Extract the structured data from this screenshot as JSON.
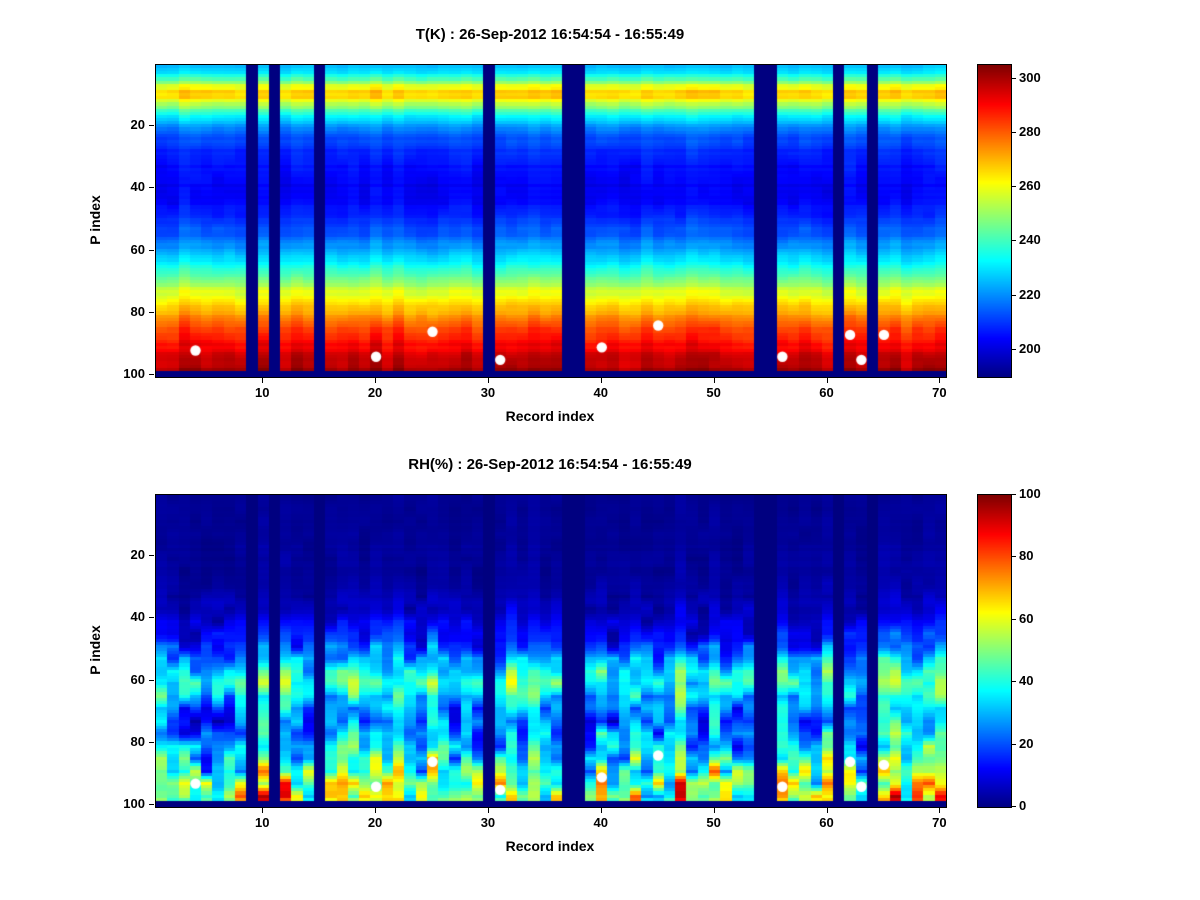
{
  "figure": {
    "background": "#ffffff",
    "missing_data_color_note": "dark navy = jet colormap minimum",
    "dot_color": "#ffffff"
  },
  "panels": [
    {
      "title": "T(K) : 26-Sep-2012 16:54:54 - 16:55:49",
      "xlabel": "Record index",
      "ylabel": "P index",
      "xticks": [
        10,
        20,
        30,
        40,
        50,
        60,
        70
      ],
      "yticks": [
        20,
        40,
        60,
        80,
        100
      ],
      "colorbar_ticks": [
        200,
        220,
        240,
        260,
        280,
        300
      ]
    },
    {
      "title": "RH(%) : 26-Sep-2012 16:54:54 - 16:55:49",
      "xlabel": "Record index",
      "ylabel": "P index",
      "xticks": [
        10,
        20,
        30,
        40,
        50,
        60,
        70
      ],
      "yticks": [
        20,
        40,
        60,
        80,
        100
      ],
      "colorbar_ticks": [
        0,
        20,
        40,
        60,
        80,
        100
      ]
    }
  ],
  "chart_data": [
    {
      "type": "heatmap",
      "title": "T(K) : 26-Sep-2012 16:54:54 - 16:55:49",
      "xlabel": "Record index",
      "ylabel": "P index",
      "colormap": "jet",
      "cols": 70,
      "rows": 100,
      "x_range": [
        1,
        70
      ],
      "y_range": [
        1,
        100
      ],
      "y_direction": "reverse",
      "value_range": [
        190,
        305
      ],
      "colorbar_ticks": [
        200,
        220,
        240,
        260,
        280,
        300
      ],
      "profile_P_value": [
        [
          1,
          225
        ],
        [
          3,
          230
        ],
        [
          5,
          240
        ],
        [
          7,
          258
        ],
        [
          9,
          268
        ],
        [
          11,
          266
        ],
        [
          13,
          252
        ],
        [
          16,
          236
        ],
        [
          20,
          222
        ],
        [
          25,
          212
        ],
        [
          32,
          206
        ],
        [
          40,
          203
        ],
        [
          48,
          207
        ],
        [
          55,
          215
        ],
        [
          60,
          224
        ],
        [
          65,
          236
        ],
        [
          70,
          250
        ],
        [
          75,
          262
        ],
        [
          80,
          272
        ],
        [
          85,
          283
        ],
        [
          90,
          291
        ],
        [
          95,
          297
        ],
        [
          98,
          300
        ]
      ],
      "noise_amp_P": [
        [
          1,
          1.2
        ],
        [
          100,
          2.2
        ]
      ],
      "col_amp_P": [
        [
          1,
          1.5
        ],
        [
          8,
          3
        ],
        [
          20,
          2
        ],
        [
          70,
          2.5
        ],
        [
          100,
          3.5
        ]
      ],
      "row_amp_P": [
        [
          1,
          1
        ],
        [
          10,
          2.5
        ],
        [
          30,
          1.2
        ],
        [
          70,
          1.8
        ],
        [
          100,
          2
        ]
      ],
      "missing_records": [
        9,
        11,
        15,
        30,
        37,
        38,
        54,
        55,
        61,
        64
      ],
      "missing_bottom_rows": 2,
      "dots_record_P": [
        [
          4,
          92
        ],
        [
          20,
          94
        ],
        [
          25,
          86
        ],
        [
          31,
          95
        ],
        [
          40,
          91
        ],
        [
          45,
          84
        ],
        [
          56,
          94
        ],
        [
          62,
          87
        ],
        [
          63,
          95
        ],
        [
          65,
          87
        ]
      ],
      "seed": 7
    },
    {
      "type": "heatmap",
      "title": "RH(%) : 26-Sep-2012 16:54:54 - 16:55:49",
      "xlabel": "Record index",
      "ylabel": "P index",
      "colormap": "jet",
      "cols": 70,
      "rows": 100,
      "x_range": [
        1,
        70
      ],
      "y_range": [
        1,
        100
      ],
      "y_direction": "reverse",
      "value_range": [
        0,
        100
      ],
      "colorbar_ticks": [
        0,
        20,
        40,
        60,
        80,
        100
      ],
      "profile_P_value": [
        [
          1,
          2
        ],
        [
          25,
          3
        ],
        [
          33,
          5
        ],
        [
          38,
          8
        ],
        [
          42,
          12
        ],
        [
          46,
          16
        ],
        [
          50,
          24
        ],
        [
          54,
          32
        ],
        [
          57,
          40
        ],
        [
          60,
          44
        ],
        [
          63,
          42
        ],
        [
          66,
          36
        ],
        [
          69,
          30
        ],
        [
          72,
          26
        ],
        [
          75,
          28
        ],
        [
          78,
          32
        ],
        [
          81,
          36
        ],
        [
          84,
          42
        ],
        [
          87,
          47
        ],
        [
          90,
          52
        ],
        [
          93,
          57
        ],
        [
          96,
          60
        ],
        [
          99,
          62
        ]
      ],
      "noise_amp_P": [
        [
          1,
          1
        ],
        [
          30,
          1.5
        ],
        [
          40,
          5
        ],
        [
          48,
          9
        ],
        [
          55,
          12
        ],
        [
          62,
          12
        ],
        [
          70,
          12
        ],
        [
          78,
          15
        ],
        [
          84,
          20
        ],
        [
          90,
          24
        ],
        [
          100,
          26
        ]
      ],
      "col_amp_P": [
        [
          1,
          0.5
        ],
        [
          35,
          2
        ],
        [
          45,
          7
        ],
        [
          55,
          11
        ],
        [
          65,
          10
        ],
        [
          75,
          11
        ],
        [
          85,
          15
        ],
        [
          100,
          17
        ]
      ],
      "row_amp_P": [
        [
          1,
          0.3
        ],
        [
          100,
          1.5
        ]
      ],
      "missing_records": [
        9,
        11,
        15,
        30,
        37,
        38,
        54,
        55,
        61,
        64
      ],
      "missing_bottom_rows": 2,
      "dots_record_P": [
        [
          4,
          93
        ],
        [
          20,
          94
        ],
        [
          25,
          86
        ],
        [
          31,
          95
        ],
        [
          40,
          91
        ],
        [
          45,
          84
        ],
        [
          56,
          94
        ],
        [
          62,
          86
        ],
        [
          63,
          94
        ],
        [
          65,
          87
        ]
      ],
      "seed": 13
    }
  ]
}
